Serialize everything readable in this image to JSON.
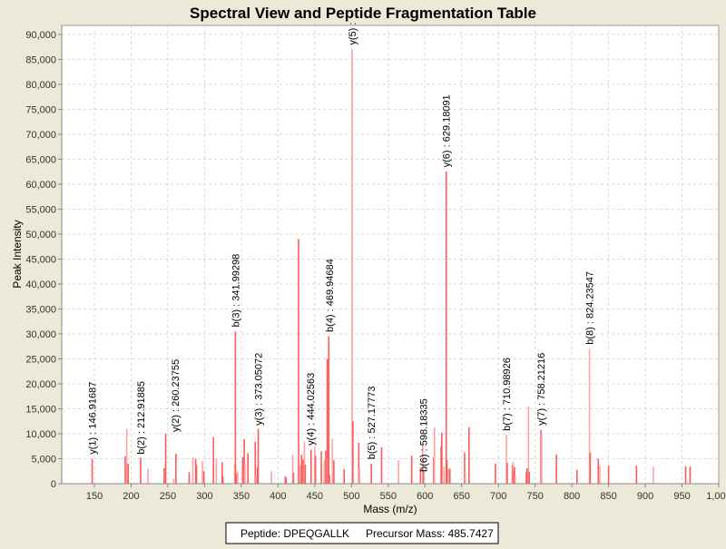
{
  "chart_data": {
    "type": "bar",
    "title": "Spectral View and Peptide Fragmentation Table",
    "xlabel": "Mass (m/z)",
    "ylabel": "Peak Intensity",
    "xlim": [
      105.5,
      1000
    ],
    "ylim": [
      0,
      91800
    ],
    "xticks": [
      150,
      200,
      250,
      300,
      350,
      400,
      450,
      500,
      550,
      600,
      650,
      700,
      750,
      800,
      850,
      900,
      950,
      1000
    ],
    "xtick_labels": [
      "150",
      "200",
      "250",
      "300",
      "350",
      "400",
      "450",
      "500",
      "550",
      "600",
      "650",
      "700",
      "750",
      "800",
      "850",
      "900",
      "950",
      "1,000"
    ],
    "yticks": [
      0,
      5000,
      10000,
      15000,
      20000,
      25000,
      30000,
      35000,
      40000,
      45000,
      50000,
      55000,
      60000,
      65000,
      70000,
      75000,
      80000,
      85000,
      90000
    ],
    "ytick_labels": [
      "0",
      "5,000",
      "10,000",
      "15,000",
      "20,000",
      "25,000",
      "30,000",
      "35,000",
      "40,000",
      "45,000",
      "50,000",
      "55,000",
      "60,000",
      "65,000",
      "70,000",
      "75,000",
      "80,000",
      "85,000",
      "90,000"
    ],
    "grid": true,
    "colors": {
      "peak": "#ff5a5a",
      "peak_light": "#ffa3a3",
      "grid": "#d8d8d8",
      "background": "#ece9d8"
    },
    "peaks": [
      [
        147,
        5000
      ],
      [
        192,
        5500
      ],
      [
        194,
        11000
      ],
      [
        196,
        4000
      ],
      [
        213,
        5200
      ],
      [
        223,
        3000
      ],
      [
        245,
        3100
      ],
      [
        247,
        10000
      ],
      [
        258,
        1000
      ],
      [
        261,
        6000
      ],
      [
        279,
        2300
      ],
      [
        284,
        5300
      ],
      [
        288,
        5000
      ],
      [
        289,
        3700
      ],
      [
        297,
        4500
      ],
      [
        299,
        2500
      ],
      [
        312,
        9300
      ],
      [
        316,
        5000
      ],
      [
        324,
        4300
      ],
      [
        325,
        1500
      ],
      [
        341,
        3800
      ],
      [
        342,
        30500
      ],
      [
        343,
        2000
      ],
      [
        345,
        2500
      ],
      [
        352,
        5300
      ],
      [
        354,
        8900
      ],
      [
        355,
        4000
      ],
      [
        359,
        6100
      ],
      [
        369,
        8400
      ],
      [
        370,
        1800
      ],
      [
        372,
        3300
      ],
      [
        373,
        11000
      ],
      [
        391,
        2500
      ],
      [
        410,
        1500
      ],
      [
        411,
        1200
      ],
      [
        420,
        5800
      ],
      [
        421,
        2200
      ],
      [
        428,
        49000
      ],
      [
        430,
        3700
      ],
      [
        432,
        5800
      ],
      [
        434,
        4800
      ],
      [
        436,
        8400
      ],
      [
        437,
        3800
      ],
      [
        445,
        6800
      ],
      [
        450,
        7300
      ],
      [
        451,
        5600
      ],
      [
        459,
        6500
      ],
      [
        463,
        4700
      ],
      [
        465,
        6600
      ],
      [
        467,
        25000
      ],
      [
        468,
        5000
      ],
      [
        469,
        29500
      ],
      [
        470,
        1800
      ],
      [
        474,
        9000
      ],
      [
        476,
        4700
      ],
      [
        490,
        2900
      ],
      [
        501,
        87000
      ],
      [
        502,
        12500
      ],
      [
        510,
        8200
      ],
      [
        511,
        3000
      ],
      [
        527,
        4000
      ],
      [
        541,
        7300
      ],
      [
        564,
        4700
      ],
      [
        582,
        5600
      ],
      [
        594,
        3200
      ],
      [
        597,
        8000
      ],
      [
        598,
        2500
      ],
      [
        612,
        5300
      ],
      [
        613,
        11300
      ],
      [
        622,
        7500
      ],
      [
        623,
        10200
      ],
      [
        626,
        3400
      ],
      [
        629,
        62500
      ],
      [
        630,
        4700
      ],
      [
        632,
        3000
      ],
      [
        634,
        3000
      ],
      [
        654,
        6200
      ],
      [
        655,
        2500
      ],
      [
        660,
        11300
      ],
      [
        696,
        4000
      ],
      [
        711,
        9800
      ],
      [
        712,
        4200
      ],
      [
        719,
        3700
      ],
      [
        720,
        4400
      ],
      [
        721,
        2500
      ],
      [
        722,
        3300
      ],
      [
        723,
        1500
      ],
      [
        738,
        2300
      ],
      [
        739,
        3100
      ],
      [
        741,
        15500
      ],
      [
        742,
        2400
      ],
      [
        758,
        10800
      ],
      [
        759,
        10000
      ],
      [
        779,
        5800
      ],
      [
        807,
        2800
      ],
      [
        824,
        27000
      ],
      [
        825,
        6200
      ],
      [
        836,
        5000
      ],
      [
        838,
        3700
      ],
      [
        850,
        3600
      ],
      [
        888,
        3600
      ],
      [
        911,
        3400
      ],
      [
        955,
        3500
      ],
      [
        961,
        3400
      ]
    ],
    "annotations": [
      {
        "label": "y(1) : 146.91687",
        "mz": 147,
        "intensity": 5500
      },
      {
        "label": "b(2) : 212.91885",
        "mz": 213,
        "intensity": 5500
      },
      {
        "label": "y(2) : 260.23755",
        "mz": 260,
        "intensity": 10000
      },
      {
        "label": "b(3) : 341.99298",
        "mz": 342,
        "intensity": 31000
      },
      {
        "label": "y(3) : 373.05072",
        "mz": 373,
        "intensity": 11300
      },
      {
        "label": "y(4) : 444.02563",
        "mz": 444,
        "intensity": 7300
      },
      {
        "label": "b(4) : 469.94684",
        "mz": 470,
        "intensity": 30000
      },
      {
        "label": "y(5) :",
        "mz": 501,
        "intensity": 87500
      },
      {
        "label": "b(5) : 527.17773",
        "mz": 527,
        "intensity": 4500
      },
      {
        "label": "b(6) : 598.18335",
        "mz": 598,
        "intensity": 2000
      },
      {
        "label": "y(6) : 629.18091",
        "mz": 629,
        "intensity": 63000
      },
      {
        "label": "b(7) : 710.98926",
        "mz": 711,
        "intensity": 10200
      },
      {
        "label": "y(7) : 758.21216",
        "mz": 758,
        "intensity": 11300
      },
      {
        "label": "b(8) : 824.23547",
        "mz": 824,
        "intensity": 27500
      }
    ]
  },
  "legend": {
    "peptide": "Peptide: DPEQGALLK",
    "precursor": "Precursor Mass: 485.7427"
  }
}
